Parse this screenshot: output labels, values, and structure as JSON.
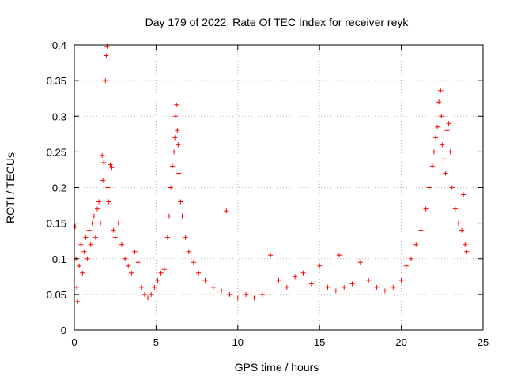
{
  "chart_data": {
    "type": "scatter",
    "title": "Day 179 of 2022, Rate Of TEC Index for receiver reyk",
    "xlabel": "GPS time / hours",
    "ylabel": "ROTI / TECUs",
    "xlim": [
      0,
      25
    ],
    "ylim": [
      0,
      0.4
    ],
    "xticks": [
      "0",
      "5",
      "10",
      "15",
      "20",
      "25"
    ],
    "yticks": [
      "0",
      "0.05",
      "0.1",
      "0.15",
      "0.2",
      "0.25",
      "0.3",
      "0.35",
      "0.4"
    ],
    "grid": true,
    "legend": "none",
    "marker": "plus",
    "color": "#ff0000",
    "series": [
      {
        "points": [
          [
            0.05,
            0.145
          ],
          [
            0.1,
            0.1
          ],
          [
            0.15,
            0.06
          ],
          [
            0.2,
            0.04
          ],
          [
            0.3,
            0.09
          ],
          [
            0.4,
            0.12
          ],
          [
            0.5,
            0.08
          ],
          [
            0.6,
            0.11
          ],
          [
            0.7,
            0.13
          ],
          [
            0.8,
            0.1
          ],
          [
            0.9,
            0.14
          ],
          [
            1.0,
            0.12
          ],
          [
            1.1,
            0.15
          ],
          [
            1.2,
            0.16
          ],
          [
            1.3,
            0.13
          ],
          [
            1.4,
            0.17
          ],
          [
            1.5,
            0.18
          ],
          [
            1.6,
            0.15
          ],
          [
            1.7,
            0.245
          ],
          [
            1.75,
            0.21
          ],
          [
            1.8,
            0.235
          ],
          [
            1.9,
            0.35
          ],
          [
            1.95,
            0.385
          ],
          [
            2.0,
            0.398
          ],
          [
            2.05,
            0.2
          ],
          [
            2.1,
            0.18
          ],
          [
            2.2,
            0.232
          ],
          [
            2.3,
            0.228
          ],
          [
            2.4,
            0.14
          ],
          [
            2.5,
            0.13
          ],
          [
            2.7,
            0.15
          ],
          [
            2.9,
            0.12
          ],
          [
            3.1,
            0.1
          ],
          [
            3.3,
            0.09
          ],
          [
            3.5,
            0.08
          ],
          [
            3.7,
            0.11
          ],
          [
            3.9,
            0.095
          ],
          [
            4.1,
            0.06
          ],
          [
            4.3,
            0.05
          ],
          [
            4.5,
            0.045
          ],
          [
            4.7,
            0.05
          ],
          [
            4.9,
            0.06
          ],
          [
            5.1,
            0.07
          ],
          [
            5.3,
            0.08
          ],
          [
            5.5,
            0.085
          ],
          [
            5.7,
            0.13
          ],
          [
            5.8,
            0.16
          ],
          [
            5.9,
            0.2
          ],
          [
            6.0,
            0.23
          ],
          [
            6.1,
            0.25
          ],
          [
            6.15,
            0.27
          ],
          [
            6.2,
            0.3
          ],
          [
            6.25,
            0.316
          ],
          [
            6.3,
            0.28
          ],
          [
            6.35,
            0.26
          ],
          [
            6.4,
            0.22
          ],
          [
            6.5,
            0.18
          ],
          [
            6.6,
            0.16
          ],
          [
            6.8,
            0.13
          ],
          [
            7.0,
            0.11
          ],
          [
            7.3,
            0.095
          ],
          [
            7.6,
            0.08
          ],
          [
            8.0,
            0.07
          ],
          [
            8.5,
            0.06
          ],
          [
            9.0,
            0.055
          ],
          [
            9.3,
            0.167
          ],
          [
            9.5,
            0.05
          ],
          [
            10.0,
            0.045
          ],
          [
            10.5,
            0.05
          ],
          [
            11.0,
            0.045
          ],
          [
            11.5,
            0.05
          ],
          [
            12.0,
            0.105
          ],
          [
            12.5,
            0.07
          ],
          [
            13.0,
            0.06
          ],
          [
            13.5,
            0.075
          ],
          [
            14.0,
            0.08
          ],
          [
            14.5,
            0.065
          ],
          [
            15.0,
            0.09
          ],
          [
            15.5,
            0.06
          ],
          [
            16.0,
            0.055
          ],
          [
            16.2,
            0.105
          ],
          [
            16.5,
            0.06
          ],
          [
            17.0,
            0.065
          ],
          [
            17.5,
            0.095
          ],
          [
            18.0,
            0.07
          ],
          [
            18.5,
            0.06
          ],
          [
            19.0,
            0.055
          ],
          [
            19.5,
            0.06
          ],
          [
            20.0,
            0.07
          ],
          [
            20.3,
            0.09
          ],
          [
            20.6,
            0.1
          ],
          [
            20.9,
            0.12
          ],
          [
            21.2,
            0.14
          ],
          [
            21.5,
            0.17
          ],
          [
            21.7,
            0.2
          ],
          [
            21.9,
            0.23
          ],
          [
            22.0,
            0.25
          ],
          [
            22.1,
            0.27
          ],
          [
            22.2,
            0.285
          ],
          [
            22.3,
            0.32
          ],
          [
            22.4,
            0.336
          ],
          [
            22.45,
            0.3
          ],
          [
            22.5,
            0.26
          ],
          [
            22.6,
            0.24
          ],
          [
            22.7,
            0.22
          ],
          [
            22.8,
            0.28
          ],
          [
            22.9,
            0.29
          ],
          [
            23.0,
            0.25
          ],
          [
            23.1,
            0.2
          ],
          [
            23.3,
            0.17
          ],
          [
            23.5,
            0.15
          ],
          [
            23.7,
            0.14
          ],
          [
            23.8,
            0.19
          ],
          [
            23.9,
            0.12
          ],
          [
            24.0,
            0.11
          ]
        ]
      }
    ]
  }
}
